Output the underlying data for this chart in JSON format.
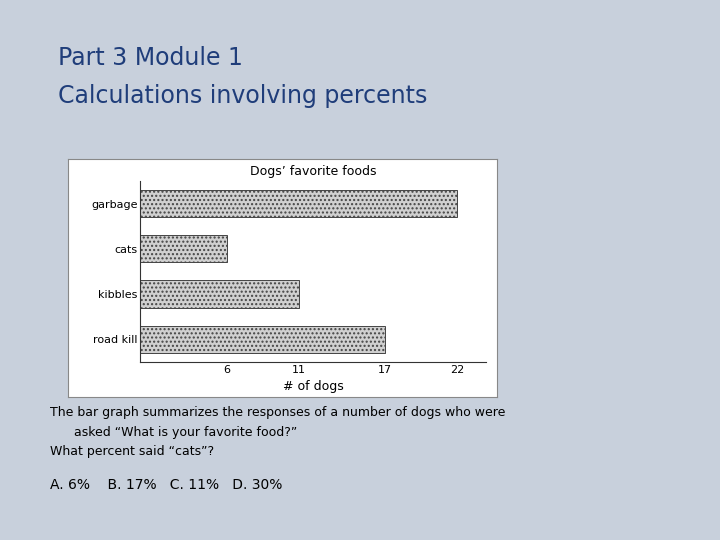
{
  "title_line1": "Part 3 Module 1",
  "title_line2": "Calculations involving percents",
  "title_color": "#1F3D7A",
  "slide_bg": "#C8D0DC",
  "chart_title": "Dogs’ favorite foods",
  "categories": [
    "garbage",
    "cats",
    "kibbles",
    "road kill"
  ],
  "values": [
    22,
    6,
    11,
    17
  ],
  "xlabel": "# of dogs",
  "xticks": [
    6,
    11,
    17,
    22
  ],
  "bar_color": "#D0D0D0",
  "bar_hatch": "....",
  "bar_edgecolor": "#444444",
  "chart_bg": "#FFFFFF",
  "chart_border": "#888888",
  "description_line1": "The bar graph summarizes the responses of a number of dogs who were",
  "description_line2": "      asked “What is your favorite food?”",
  "description_line3": "What percent said “cats”?",
  "answers": "A. 6%    B. 17%   C. 11%   D. 30%",
  "text_color": "#000000",
  "divider_color": "#5580A0",
  "title_fontsize": 17,
  "body_fontsize": 9,
  "answer_fontsize": 10,
  "chart_title_fontsize": 9,
  "chart_label_fontsize": 8
}
